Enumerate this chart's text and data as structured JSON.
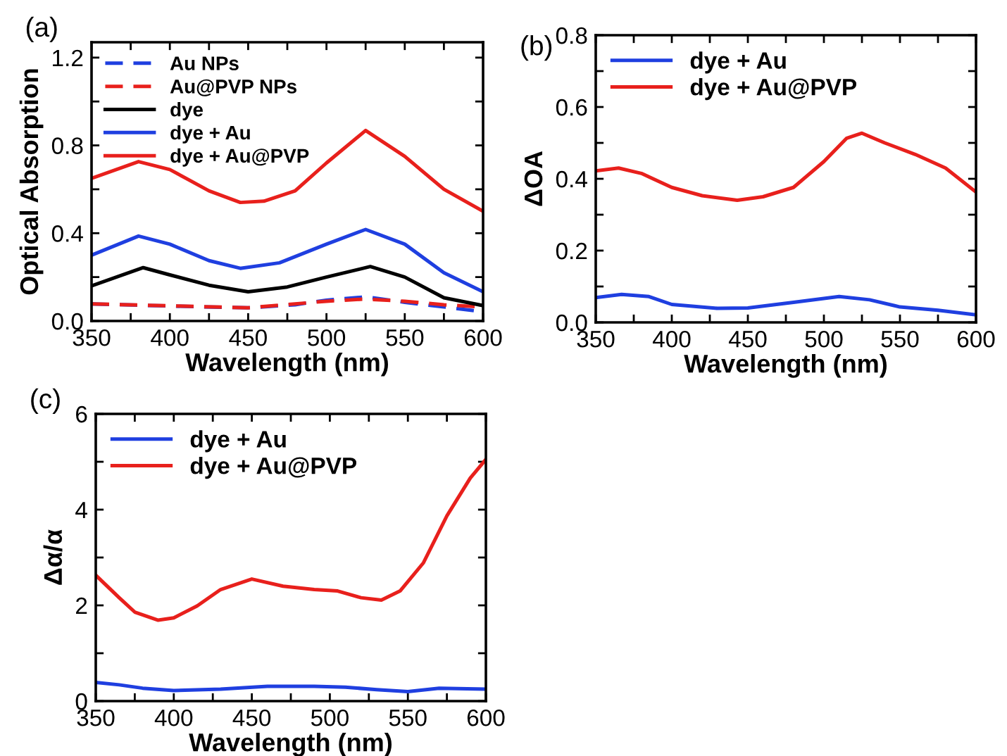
{
  "chart_data": [
    {
      "type": "line",
      "xlabel": "Wavelength (nm)",
      "ylabel": "Optical Absorption",
      "annotations": [
        "(a)"
      ],
      "legend": "top left",
      "grid": false,
      "marker": "none",
      "xlim": [
        350,
        600
      ],
      "xticks": [
        350,
        {
          "value": 375,
          "label": null
        },
        400,
        {
          "value": 425,
          "label": null
        },
        450,
        {
          "value": 475,
          "label": null
        },
        500,
        {
          "value": 525,
          "label": null
        },
        550,
        {
          "value": 575,
          "label": null
        },
        600
      ],
      "ylim": [
        0,
        1.27
      ],
      "yticks": [
        {
          "value": 0,
          "label": "0.0"
        },
        {
          "value": 0.2,
          "label": null
        },
        0.4,
        {
          "value": 0.6,
          "label": null
        },
        0.8,
        {
          "value": 1.0,
          "label": null
        },
        1.2
      ],
      "series": [
        {
          "name": "Au NPs",
          "color": "#1f3fe0",
          "line_style": "dashed",
          "x": [
            350,
            400,
            450,
            480,
            500,
            525,
            550,
            575,
            600
          ],
          "values": [
            0.078,
            0.068,
            0.06,
            0.074,
            0.095,
            0.11,
            0.085,
            0.064,
            0.042
          ]
        },
        {
          "name": "Au@PVP NPs",
          "color": "#e8201c",
          "line_style": "dashed",
          "x": [
            350,
            450,
            500,
            525,
            550,
            575,
            600
          ],
          "values": [
            0.078,
            0.06,
            0.09,
            0.1,
            0.09,
            0.074,
            0.063
          ]
        },
        {
          "name": "dye",
          "color": "#000000",
          "line_style": "solid",
          "x": [
            350,
            383,
            400,
            425,
            450,
            475,
            500,
            528,
            550,
            575,
            600
          ],
          "values": [
            0.16,
            0.243,
            0.21,
            0.163,
            0.133,
            0.155,
            0.2,
            0.248,
            0.2,
            0.106,
            0.07
          ]
        },
        {
          "name": "dye + Au",
          "color": "#1f3fe0",
          "line_style": "solid",
          "x": [
            350,
            380,
            400,
            425,
            445,
            470,
            500,
            525,
            550,
            575,
            600
          ],
          "values": [
            0.3,
            0.387,
            0.35,
            0.275,
            0.24,
            0.265,
            0.35,
            0.417,
            0.35,
            0.22,
            0.133
          ]
        },
        {
          "name": "dye + Au@PVP",
          "color": "#e8201c",
          "line_style": "solid",
          "x": [
            350,
            380,
            400,
            425,
            445,
            460,
            480,
            500,
            525,
            550,
            575,
            600
          ],
          "values": [
            0.65,
            0.726,
            0.69,
            0.593,
            0.54,
            0.546,
            0.593,
            0.72,
            0.868,
            0.75,
            0.6,
            0.5
          ]
        }
      ]
    },
    {
      "type": "line",
      "xlabel": "Wavelength (nm)",
      "ylabel": "ΔOA",
      "annotations": [
        "(b)"
      ],
      "legend": "top left",
      "grid": false,
      "marker": "none",
      "xlim": [
        350,
        600
      ],
      "xticks": [
        350,
        {
          "value": 375,
          "label": null
        },
        400,
        {
          "value": 425,
          "label": null
        },
        450,
        {
          "value": 475,
          "label": null
        },
        500,
        {
          "value": 525,
          "label": null
        },
        550,
        {
          "value": 575,
          "label": null
        },
        600
      ],
      "ylim": [
        0,
        0.8
      ],
      "yticks": [
        {
          "value": 0,
          "label": "0.0"
        },
        {
          "value": 0.1,
          "label": null
        },
        0.2,
        {
          "value": 0.3,
          "label": null
        },
        0.4,
        {
          "value": 0.5,
          "label": null
        },
        0.6,
        {
          "value": 0.7,
          "label": null
        },
        0.8
      ],
      "series": [
        {
          "name": "dye + Au",
          "color": "#1f3fe0",
          "line_style": "solid",
          "x": [
            350,
            367,
            385,
            400,
            430,
            450,
            480,
            510,
            530,
            550,
            575,
            600
          ],
          "values": [
            0.069,
            0.078,
            0.072,
            0.05,
            0.039,
            0.04,
            0.056,
            0.072,
            0.063,
            0.043,
            0.034,
            0.021
          ]
        },
        {
          "name": "dye + Au@PVP",
          "color": "#e8201c",
          "line_style": "solid",
          "x": [
            350,
            365,
            380,
            400,
            420,
            443,
            460,
            480,
            500,
            515,
            525,
            540,
            560,
            580,
            600
          ],
          "values": [
            0.422,
            0.43,
            0.415,
            0.376,
            0.353,
            0.34,
            0.35,
            0.376,
            0.448,
            0.513,
            0.527,
            0.5,
            0.468,
            0.43,
            0.363
          ]
        }
      ]
    },
    {
      "type": "line",
      "xlabel": "Wavelength (nm)",
      "ylabel": "Δα/α",
      "annotations": [
        "(c)"
      ],
      "legend": "top left",
      "grid": false,
      "marker": "none",
      "xlim": [
        350,
        600
      ],
      "xticks": [
        350,
        {
          "value": 375,
          "label": null
        },
        400,
        {
          "value": 425,
          "label": null
        },
        450,
        {
          "value": 475,
          "label": null
        },
        500,
        {
          "value": 525,
          "label": null
        },
        550,
        {
          "value": 575,
          "label": null
        },
        600
      ],
      "ylim": [
        0,
        6
      ],
      "yticks": [
        0,
        {
          "value": 1,
          "label": null
        },
        2,
        {
          "value": 3,
          "label": null
        },
        4,
        {
          "value": 5,
          "label": null
        },
        6
      ],
      "series": [
        {
          "name": "dye + Au",
          "color": "#1f3fe0",
          "line_style": "solid",
          "x": [
            350,
            365,
            380,
            400,
            430,
            460,
            490,
            510,
            530,
            550,
            570,
            600
          ],
          "values": [
            0.39,
            0.34,
            0.27,
            0.22,
            0.25,
            0.31,
            0.31,
            0.29,
            0.24,
            0.2,
            0.27,
            0.25
          ]
        },
        {
          "name": "dye + Au@PVP",
          "color": "#e8201c",
          "line_style": "solid",
          "x": [
            350,
            365,
            375,
            390,
            400,
            415,
            430,
            450,
            470,
            490,
            505,
            520,
            533,
            545,
            560,
            575,
            590,
            600
          ],
          "values": [
            2.63,
            2.16,
            1.86,
            1.69,
            1.74,
            1.99,
            2.33,
            2.55,
            2.4,
            2.33,
            2.3,
            2.16,
            2.11,
            2.3,
            2.89,
            3.87,
            4.66,
            5.05
          ]
        }
      ]
    }
  ]
}
